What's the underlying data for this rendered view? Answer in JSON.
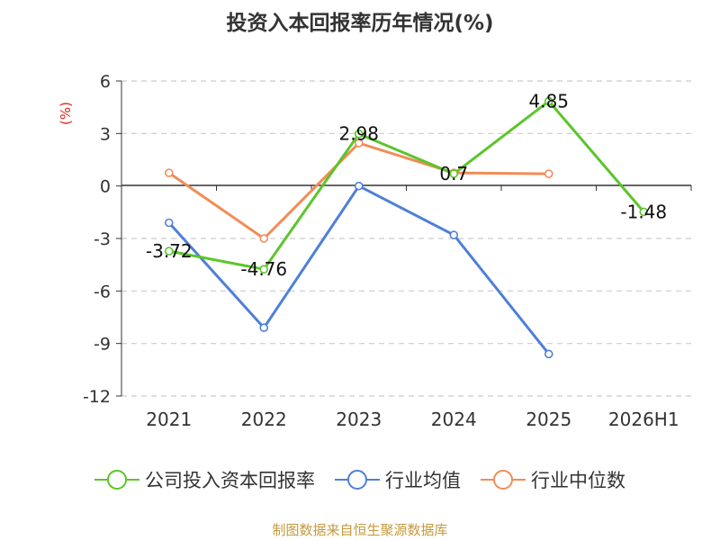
{
  "title": "投资入本回报率历年情况(%)",
  "source": "制图数据来自恒生聚源数据库",
  "chart_data": {
    "type": "line",
    "title": "投资入本回报率历年情况(%)",
    "ylabel": "(%)",
    "xlabel": "",
    "categories": [
      "2021",
      "2022",
      "2023",
      "2024",
      "2025",
      "2026H1"
    ],
    "ylim": [
      -12,
      6
    ],
    "yticks": [
      6,
      3,
      0,
      -3,
      -6,
      -9,
      -12
    ],
    "grid": true,
    "legend_position": "bottom",
    "series": [
      {
        "name": "公司投入资本回报率",
        "color": "#5cc52a",
        "values": [
          -3.72,
          -4.76,
          2.98,
          0.7,
          4.85,
          -1.48
        ],
        "labels": [
          "-3.72",
          "-4.76",
          "2.98",
          "0.7",
          "4.85",
          "-1.48"
        ]
      },
      {
        "name": "行业均值",
        "color": "#4f7fd9",
        "values": [
          -2.1,
          -8.1,
          0.0,
          -2.8,
          -9.6,
          null
        ]
      },
      {
        "name": "行业中位数",
        "color": "#f28c57",
        "values": [
          0.75,
          -3.0,
          2.45,
          0.75,
          0.7,
          null
        ]
      }
    ]
  }
}
